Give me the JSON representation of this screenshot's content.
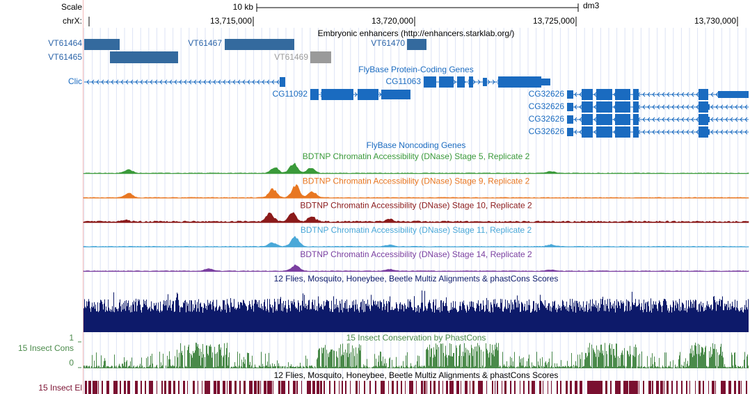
{
  "header": {
    "scale_label": "Scale",
    "scale_value": "10 kb",
    "assembly": "dm3",
    "chrom_label": "chrX:",
    "positions": [
      "13,715,000",
      "13,720,000",
      "13,725,000",
      "13,730,000"
    ]
  },
  "enhancers": {
    "title": "Embryonic enhancers (http://enhancers.starklab.org/)",
    "items": [
      "VT61464",
      "VT61465",
      "VT61467",
      "VT61469",
      "VT61470"
    ]
  },
  "protein_coding": {
    "title": "FlyBase Protein-Coding Genes",
    "genes": [
      "Clic",
      "CG11092",
      "CG11063",
      "CG32626",
      "CG32626",
      "CG32626",
      "CG32626"
    ]
  },
  "noncoding": {
    "title": "FlyBase Noncoding Genes"
  },
  "dnase": [
    "BDTNP Chromatin Accessibility (DNase) Stage 5, Replicate 2",
    "BDTNP Chromatin Accessibility (DNase) Stage 9, Replicate 2",
    "BDTNP Chromatin Accessibility (DNase) Stage 10, Replicate 2",
    "BDTNP Chromatin Accessibility (DNase) Stage 11, Replicate 2",
    "BDTNP Chromatin Accessibility (DNase) Stage 14, Replicate 2"
  ],
  "multiz": {
    "title": "12 Flies, Mosquito, Honeybee, Beetle Multiz Alignments & phastCons Scores"
  },
  "cons": {
    "title": "15 Insect Conservation by PhastCons",
    "label": "15 Insect Cons",
    "top": "1",
    "bottom": "0"
  },
  "elements": {
    "title": "12 Flies, Mosquito, Honeybee, Beetle Multiz Alignments & phastCons Scores",
    "label": "15 Insect El"
  }
}
